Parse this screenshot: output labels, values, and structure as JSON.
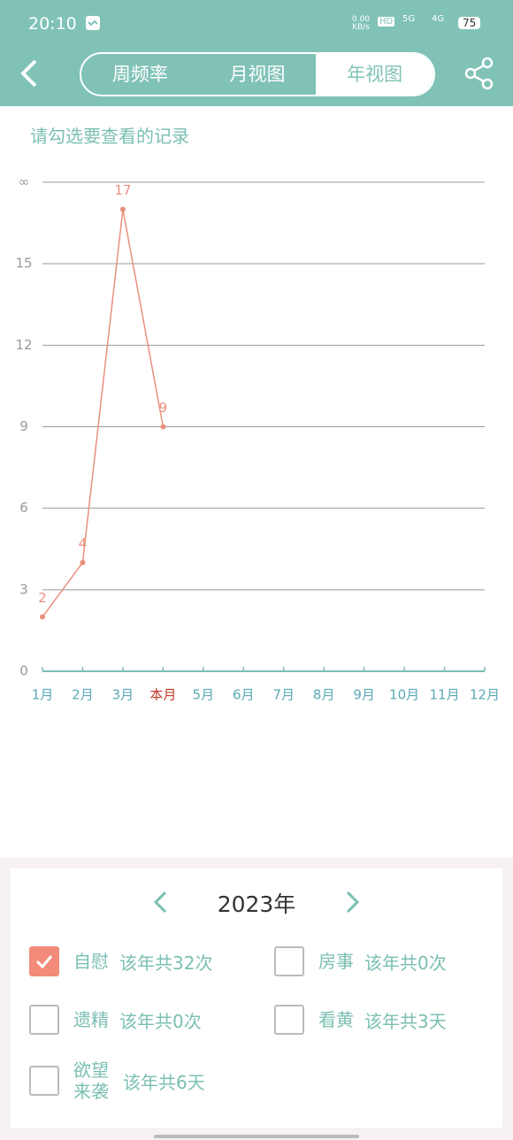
{
  "status_bar": {
    "time": "20:10",
    "net_speed": "0.00",
    "net_unit": "KB/s",
    "hd": "HD",
    "signal_1": "5G",
    "signal_2": "4G",
    "battery": "75"
  },
  "tabs": [
    "周频率",
    "月视图",
    "年视图"
  ],
  "selected_tab": 2,
  "prompt": "请勾选要查看的记录",
  "chart_data": {
    "type": "line",
    "categories": [
      "1月",
      "2月",
      "3月",
      "本月",
      "5月",
      "6月",
      "7月",
      "8月",
      "9月",
      "10月",
      "11月",
      "12月"
    ],
    "values": [
      2,
      4,
      17,
      9,
      null,
      null,
      null,
      null,
      null,
      null,
      null,
      null
    ],
    "color": "#e8907e",
    "highlight_index": 3,
    "highlight_color": "#c0392b",
    "ylim": [
      0,
      18
    ],
    "yticks": [
      0,
      3,
      6,
      9,
      12,
      15,
      {
        "value": 18,
        "label": "∞"
      }
    ],
    "grid": true
  },
  "year": "2023年",
  "records": [
    {
      "label": "自慰",
      "summary": "该年共32次",
      "checked": true
    },
    {
      "label": "房事",
      "summary": "该年共0次",
      "checked": false
    },
    {
      "label": "遗精",
      "summary": "该年共0次",
      "checked": false
    },
    {
      "label": "看黄",
      "summary": "该年共3天",
      "checked": false
    },
    {
      "label": "欲望来袭",
      "summary": "该年共6天",
      "checked": false
    }
  ]
}
